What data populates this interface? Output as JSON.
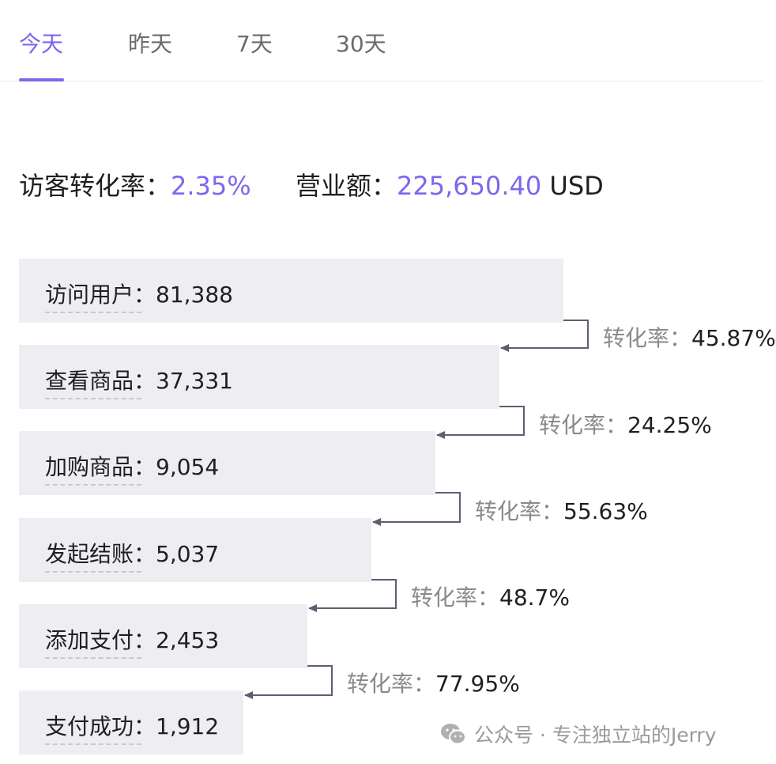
{
  "tabs": [
    {
      "label": "今天",
      "active": true
    },
    {
      "label": "昨天",
      "active": false
    },
    {
      "label": "7天",
      "active": false
    },
    {
      "label": "30天",
      "active": false
    }
  ],
  "summary": {
    "conversion_label": "访客转化率：",
    "conversion_value": "2.35%",
    "revenue_label": "营业额：",
    "revenue_value": "225,650.40",
    "currency": "USD"
  },
  "funnel": {
    "steps": [
      {
        "label": "访问用户：",
        "value": "81,388"
      },
      {
        "label": "查看商品：",
        "value": "37,331"
      },
      {
        "label": "加购商品：",
        "value": "9,054"
      },
      {
        "label": "发起结账：",
        "value": "5,037"
      },
      {
        "label": "添加支付：",
        "value": "2,453"
      },
      {
        "label": "支付成功：",
        "value": "1,912"
      }
    ],
    "rates": [
      {
        "label": "转化率：",
        "value": "45.87%"
      },
      {
        "label": "转化率：",
        "value": "24.25%"
      },
      {
        "label": "转化率：",
        "value": "55.63%"
      },
      {
        "label": "转化率：",
        "value": "48.7%"
      },
      {
        "label": "转化率：",
        "value": "77.95%"
      }
    ]
  },
  "watermark": {
    "text": "公众号 · 专注独立站的Jerry",
    "icon": "wechat-icon"
  },
  "colors": {
    "accent": "#7b68ee",
    "bar": "#eeeef2",
    "connector": "#5a6070",
    "muted": "#8a8a8a"
  }
}
